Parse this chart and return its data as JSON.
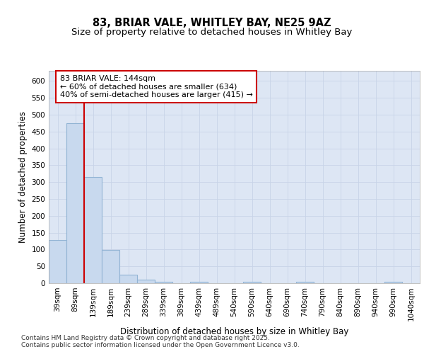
{
  "title1": "83, BRIAR VALE, WHITLEY BAY, NE25 9AZ",
  "title2": "Size of property relative to detached houses in Whitley Bay",
  "xlabel": "Distribution of detached houses by size in Whitley Bay",
  "ylabel": "Number of detached properties",
  "categories": [
    "39sqm",
    "89sqm",
    "139sqm",
    "189sqm",
    "239sqm",
    "289sqm",
    "339sqm",
    "389sqm",
    "439sqm",
    "489sqm",
    "540sqm",
    "590sqm",
    "640sqm",
    "690sqm",
    "740sqm",
    "790sqm",
    "840sqm",
    "890sqm",
    "940sqm",
    "990sqm",
    "1040sqm"
  ],
  "values": [
    128,
    475,
    315,
    98,
    25,
    10,
    5,
    0,
    5,
    0,
    0,
    5,
    0,
    0,
    5,
    0,
    0,
    0,
    0,
    5,
    0
  ],
  "bar_color": "#c8d9ee",
  "bar_edge_color": "#92b4d4",
  "vline_color": "#cc0000",
  "annotation_text": "83 BRIAR VALE: 144sqm\n← 60% of detached houses are smaller (634)\n40% of semi-detached houses are larger (415) →",
  "annotation_box_color": "#ffffff",
  "annotation_box_edge": "#cc0000",
  "ylim": [
    0,
    630
  ],
  "yticks": [
    0,
    50,
    100,
    150,
    200,
    250,
    300,
    350,
    400,
    450,
    500,
    550,
    600
  ],
  "grid_color": "#c8d4e8",
  "bg_color": "#dde6f4",
  "footer": "Contains HM Land Registry data © Crown copyright and database right 2025.\nContains public sector information licensed under the Open Government Licence v3.0.",
  "title_fontsize": 10.5,
  "subtitle_fontsize": 9.5,
  "axis_label_fontsize": 8.5,
  "tick_fontsize": 7.5,
  "annotation_fontsize": 8,
  "footer_fontsize": 6.5
}
